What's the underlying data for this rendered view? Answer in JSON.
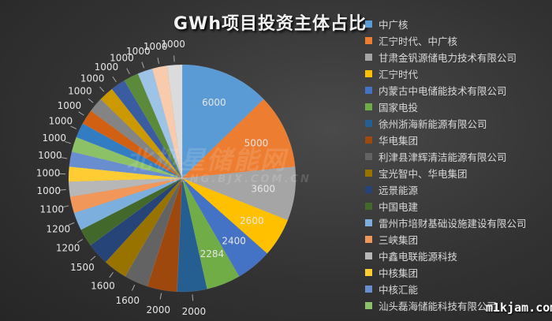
{
  "chart_data": {
    "type": "pie",
    "title": "GWh项目投资主体占比",
    "legend_position": "right",
    "start_angle": "12 o'clock, clockwise",
    "slices": [
      {
        "name": "中广核",
        "value": 6000,
        "color": "#5b9bd5"
      },
      {
        "name": "汇宁时代、中广核",
        "value": 5000,
        "color": "#ed7d31"
      },
      {
        "name": "甘肃金钒源储电力技术有限公司",
        "value": 3600,
        "color": "#a5a5a5"
      },
      {
        "name": "汇宁时代",
        "value": 2600,
        "color": "#ffc000"
      },
      {
        "name": "内蒙古中电储能技术有限公司",
        "value": 2400,
        "color": "#4472c4"
      },
      {
        "name": "国家电投",
        "value": 2284,
        "color": "#70ad47"
      },
      {
        "name": "徐州浙海新能源有限公司",
        "value": 2000,
        "color": "#255e91"
      },
      {
        "name": "华电集团",
        "value": 2000,
        "color": "#9e480e"
      },
      {
        "name": "利津县津辉清洁能源有限公司",
        "value": 1600,
        "color": "#636363"
      },
      {
        "name": "宝光智中、华电集团",
        "value": 1600,
        "color": "#997300"
      },
      {
        "name": "远景能源",
        "value": 1500,
        "color": "#264478"
      },
      {
        "name": "中国电建",
        "value": 1200,
        "color": "#43682b"
      },
      {
        "name": "雷州市培财基础设施建设有限公司",
        "value": 1200,
        "color": "#7cafdd"
      },
      {
        "name": "三峡集团",
        "value": 1100,
        "color": "#f1975a"
      },
      {
        "name": "中鑫电联能源科技",
        "value": 1000,
        "color": "#b7b7b7"
      },
      {
        "name": "中核集团",
        "value": 1000,
        "color": "#ffcd33"
      },
      {
        "name": "中核汇能",
        "value": 1000,
        "color": "#698ed0"
      },
      {
        "name": "汕头磊海储能科技有限公司",
        "value": 1000,
        "color": "#8cc168"
      },
      {
        "value": 1000,
        "color": "#327dc2"
      },
      {
        "value": 1000,
        "color": "#d26012"
      },
      {
        "value": 1000,
        "color": "#848484"
      },
      {
        "value": 1000,
        "color": "#cc9a00"
      },
      {
        "value": 1000,
        "color": "#3a5ca0"
      },
      {
        "value": 1000,
        "color": "#5a8a3a"
      },
      {
        "value": 1000,
        "color": "#9dc3e6"
      },
      {
        "value": 1000,
        "color": "#f8cbad"
      },
      {
        "value": 1000,
        "color": "#dbdbdb"
      }
    ]
  },
  "watermarks": {
    "site_cn": "北极星储能网",
    "site_url": "NENG.BJX.COM.CN",
    "corner": "m1kjam.com"
  }
}
